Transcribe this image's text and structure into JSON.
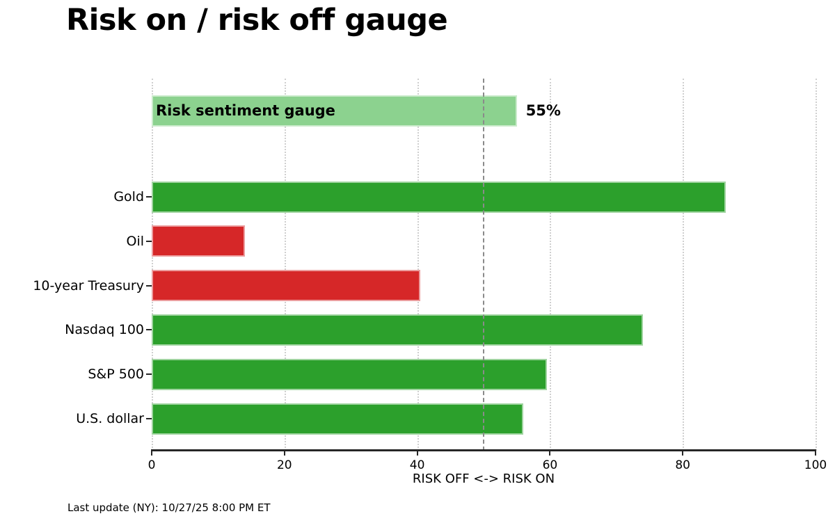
{
  "title": "Risk on / risk off gauge",
  "footer": "Last update (NY): 10/27/25 8:00 PM ET",
  "colors": {
    "risk_on_green": "#2ca02c",
    "risk_off_red": "#d62728",
    "gauge_light_green": "#8cd28f",
    "threshold_line_gray": "#8a8a8a",
    "gridline_gray": "#cfcfcf",
    "axis_dark": "#262626"
  },
  "chart_data": {
    "type": "bar",
    "orientation": "horizontal",
    "title": "Risk on / risk off gauge",
    "xlabel": "RISK OFF <-> RISK ON",
    "xlim": [
      0,
      100
    ],
    "xticks": [
      0,
      20,
      40,
      60,
      80,
      100
    ],
    "grid": "vertical dotted at xticks",
    "threshold_x": 50,
    "threshold_style": "dashed gray vertical line",
    "legend": "none",
    "gauge_row": {
      "label": "Risk sentiment gauge",
      "value": 55,
      "display": "55%",
      "color": "#8cd28f"
    },
    "categories": [
      "Gold",
      "Oil",
      "10-year Treasury",
      "Nasdaq 100",
      "S&P 500",
      "U.S. dollar"
    ],
    "values": [
      86.5,
      14,
      40.5,
      74,
      59.5,
      56
    ],
    "bar_colors": [
      "#2ca02c",
      "#d62728",
      "#d62728",
      "#2ca02c",
      "#2ca02c",
      "#2ca02c"
    ],
    "color_meaning": "green = risk on (>50), red = risk off (<50)"
  }
}
